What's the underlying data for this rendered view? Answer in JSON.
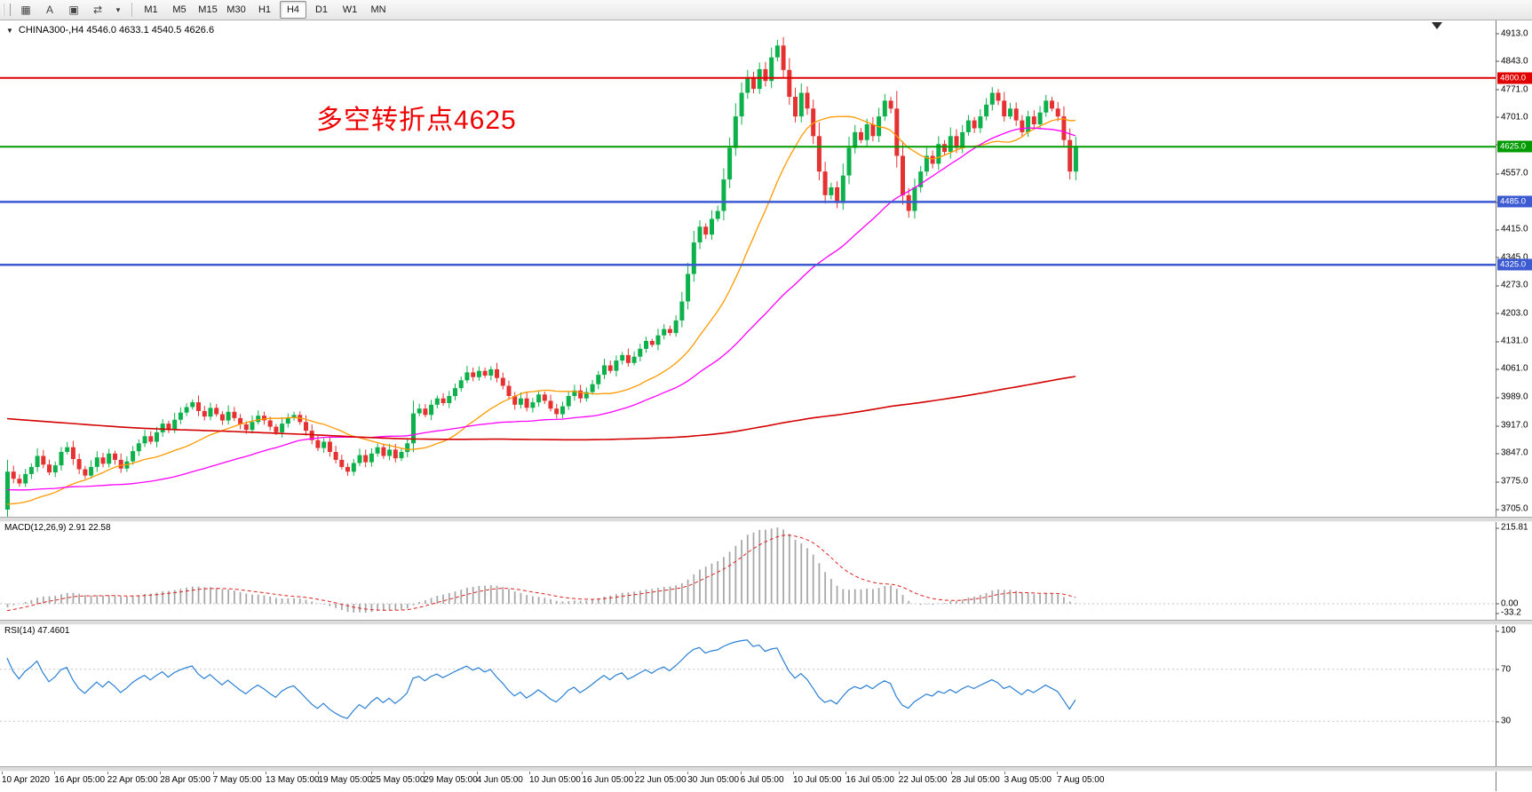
{
  "toolbar": {
    "icons": [
      {
        "name": "chart-grid-icon",
        "glyph": "▦"
      },
      {
        "name": "letter-a-icon",
        "glyph": "A"
      },
      {
        "name": "text-box-icon",
        "glyph": "▣"
      },
      {
        "name": "swap-arrows-icon",
        "glyph": "⇄"
      },
      {
        "name": "dropdown-caret-icon",
        "glyph": "▾"
      }
    ],
    "timeframes": [
      "M1",
      "M5",
      "M15",
      "M30",
      "H1",
      "H4",
      "D1",
      "W1",
      "MN"
    ],
    "active_timeframe": "H4"
  },
  "chart": {
    "title_marker": "▼",
    "title": "CHINA300-,H4  4546.0 4633.1 4540.5 4626.6",
    "annotation": "多空转折点4625",
    "price_axis": [
      "4913.0",
      "4843.0",
      "4771.0",
      "4701.0",
      "4631.0",
      "4557.0",
      "4485.0",
      "4415.0",
      "4345.0",
      "4273.0",
      "4203.0",
      "4131.0",
      "4061.0",
      "3989.0",
      "3917.0",
      "3847.0",
      "3775.0",
      "3705.0"
    ]
  },
  "macd_panel": {
    "label": "MACD(12,26,9) 2.91 22.58",
    "axis_max": "215.81",
    "axis_zero": "0.00",
    "axis_min": "-33.2"
  },
  "rsi_panel": {
    "label": "RSI(14) 47.4601",
    "axis": [
      "100",
      "70",
      "30"
    ]
  },
  "time_axis": [
    "10 Apr 2020",
    "16 Apr 05:00",
    "22 Apr 05:00",
    "28 Apr 05:00",
    "7 May 05:00",
    "13 May 05:00",
    "19 May 05:00",
    "25 May 05:00",
    "29 May 05:00",
    "4 Jun 05:00",
    "10 Jun 05:00",
    "16 Jun 05:00",
    "22 Jun 05:00",
    "30 Jun 05:00",
    "6 Jul 05:00",
    "10 Jul 05:00",
    "16 Jul 05:00",
    "22 Jul 05:00",
    "28 Jul 05:00",
    "3 Aug 05:00",
    "7 Aug 05:00"
  ],
  "chart_data": {
    "type": "candlestick",
    "symbol": "CHINA300-",
    "timeframe": "H4",
    "ohlc_current": {
      "open": 4546.0,
      "high": 4633.1,
      "low": 4540.5,
      "close": 4626.6
    },
    "price_range": [
      3690,
      4930
    ],
    "up_color": "#0cb14b",
    "down_color": "#e53131",
    "closes": [
      3800,
      3782,
      3770,
      3794,
      3812,
      3840,
      3818,
      3798,
      3816,
      3850,
      3862,
      3832,
      3806,
      3790,
      3812,
      3836,
      3820,
      3846,
      3830,
      3808,
      3826,
      3852,
      3872,
      3890,
      3876,
      3900,
      3922,
      3906,
      3932,
      3950,
      3964,
      3976,
      3954,
      3940,
      3962,
      3946,
      3930,
      3952,
      3936,
      3920,
      3906,
      3926,
      3942,
      3930,
      3914,
      3900,
      3922,
      3936,
      3944,
      3926,
      3904,
      3880,
      3860,
      3876,
      3850,
      3830,
      3812,
      3800,
      3822,
      3842,
      3824,
      3846,
      3862,
      3840,
      3856,
      3834,
      3850,
      3872,
      3948,
      3960,
      3944,
      3970,
      3986,
      3974,
      3992,
      4012,
      4032,
      4052,
      4040,
      4056,
      4044,
      4060,
      4038,
      4018,
      3992,
      3970,
      3986,
      3962,
      3976,
      3996,
      3980,
      3960,
      3946,
      3966,
      3992,
      4006,
      3986,
      4002,
      4022,
      4046,
      4070,
      4056,
      4082,
      4096,
      4076,
      4092,
      4112,
      4132,
      4122,
      4146,
      4162,
      4152,
      4184,
      4232,
      4302,
      4382,
      4422,
      4402,
      4442,
      4462,
      4542,
      4622,
      4702,
      4762,
      4802,
      4772,
      4822,
      4792,
      4852,
      4882,
      4820,
      4752,
      4702,
      4762,
      4722,
      4652,
      4562,
      4502,
      4522,
      4482,
      4552,
      4622,
      4662,
      4642,
      4682,
      4652,
      4702,
      4742,
      4722,
      4602,
      4502,
      4462,
      4522,
      4562,
      4602,
      4582,
      4632,
      4612,
      4652,
      4622,
      4662,
      4692,
      4672,
      4702,
      4732,
      4762,
      4742,
      4702,
      4722,
      4692,
      4662,
      4702,
      4682,
      4712,
      4742,
      4722,
      4702,
      4642,
      4562,
      4627
    ],
    "pre_trend": {
      "from": 4140,
      "to": 3730,
      "count": 300
    },
    "moving_averages": [
      {
        "name": "fast",
        "period": 20,
        "color": "#ff9a00",
        "width": 1.3
      },
      {
        "name": "mid",
        "period": 50,
        "color": "#ff00ff",
        "width": 1.3
      },
      {
        "name": "slow",
        "period": 300,
        "color": "#d40000",
        "width": 1.6
      }
    ],
    "levels": [
      {
        "price": 4800.0,
        "label": "4800.0",
        "color": "#e00000",
        "width": 2
      },
      {
        "price": 4625.0,
        "label": "4625.0",
        "color": "#009b00",
        "width": 2
      },
      {
        "price": 4485.0,
        "label": "4485.0",
        "color": "#3c5bd2",
        "width": 2.5
      },
      {
        "price": 4325.0,
        "label": "4325.0",
        "color": "#3c5bd2",
        "width": 2.5
      }
    ],
    "macd": {
      "fast": 12,
      "slow": 26,
      "signal": 9,
      "main_value": 2.91,
      "signal_value": 22.58,
      "histogram_color": "#a8a8a8",
      "signal_color": "#e02020"
    },
    "rsi": {
      "period": 14,
      "current": 47.4601,
      "levels": [
        70,
        30
      ],
      "color": "#2a7fd4"
    }
  }
}
